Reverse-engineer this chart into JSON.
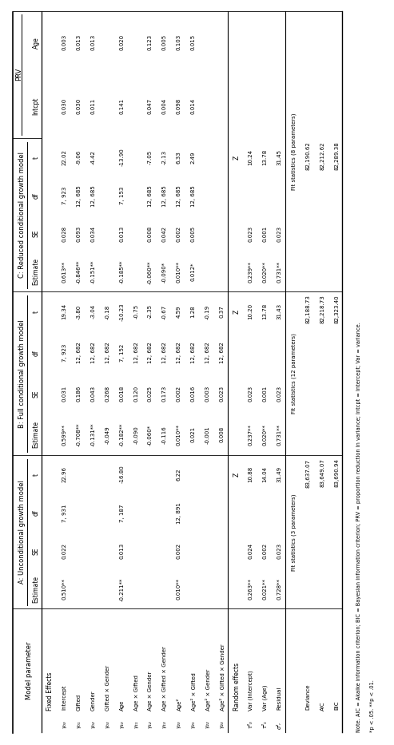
{
  "A_fixed": [
    [
      "0.510**",
      "0.022",
      "7, 931",
      "22.96"
    ],
    [
      "",
      "",
      "",
      ""
    ],
    [
      "",
      "",
      "",
      ""
    ],
    [
      "",
      "",
      "",
      ""
    ],
    [
      "-0.211**",
      "0.013",
      "7, 187",
      "-16.80"
    ],
    [
      "",
      "",
      "",
      ""
    ],
    [
      "",
      "",
      "",
      ""
    ],
    [
      "",
      "",
      "",
      ""
    ],
    [
      "0.010**",
      "0.002",
      "12, 891",
      "6.22"
    ],
    [
      "",
      "",
      "",
      ""
    ],
    [
      "",
      "",
      "",
      ""
    ],
    [
      "",
      "",
      "",
      ""
    ]
  ],
  "A_random": [
    [
      "0.263**",
      "0.024",
      "",
      "10.88"
    ],
    [
      "0.021**",
      "0.002",
      "",
      "14.04"
    ],
    [
      "0.728**",
      "0.023",
      "",
      "31.49"
    ]
  ],
  "A_fit": [
    "83,637.07",
    "83,649.07",
    "83,690.94"
  ],
  "A_fit_label": "Fit statistics (3 parameters)",
  "B_fixed": [
    [
      "0.599**",
      "0.031",
      "7, 923",
      "19.34"
    ],
    [
      "-0.708**",
      "0.186",
      "12, 682",
      "-3.80"
    ],
    [
      "-0.131**",
      "0.043",
      "12, 682",
      "-3.04"
    ],
    [
      "-0.049",
      "0.268",
      "12, 682",
      "-0.18"
    ],
    [
      "-0.182**",
      "0.018",
      "7, 152",
      "-10.23"
    ],
    [
      "-0.090",
      "0.120",
      "12, 682",
      "-0.75"
    ],
    [
      "-0.060*",
      "0.025",
      "12, 682",
      "-2.35"
    ],
    [
      "-0.116",
      "0.173",
      "12, 682",
      "-0.67"
    ],
    [
      "0.010**",
      "0.002",
      "12, 682",
      "4.59"
    ],
    [
      "0.021",
      "0.016",
      "12, 682",
      "1.28"
    ],
    [
      "-0.001",
      "0.003",
      "12, 682",
      "-0.19"
    ],
    [
      "0.008",
      "0.023",
      "12, 682",
      "0.37"
    ]
  ],
  "B_random": [
    [
      "0.237**",
      "0.023",
      "",
      "10.20"
    ],
    [
      "0.020**",
      "0.001",
      "",
      "13.78"
    ],
    [
      "0.731**",
      "0.023",
      "",
      "31.43"
    ]
  ],
  "B_fit": [
    "82,188.73",
    "82,218.73",
    "82,323.40"
  ],
  "B_fit_label": "Fit statistics (12 parameters)",
  "C_fixed": [
    [
      "0.613**",
      "0.028",
      "7, 923",
      "22.02",
      "0.030",
      "0.003"
    ],
    [
      "-0.846**",
      "0.093",
      "12, 685",
      "-9.06",
      "0.030",
      "0.013"
    ],
    [
      "-0.151**",
      "0.034",
      "12, 685",
      "-4.42",
      "0.011",
      "0.013"
    ],
    [
      "",
      "",
      "",
      "",
      "",
      ""
    ],
    [
      "-0.185**",
      "0.013",
      "7, 153",
      "-13.90",
      "0.141",
      "0.020"
    ],
    [
      "",
      "",
      "",
      "",
      "",
      ""
    ],
    [
      "-0.060**",
      "0.008",
      "12, 685",
      "-7.05",
      "0.047",
      "0.123"
    ],
    [
      "-0.090*",
      "0.042",
      "12, 685",
      "-2.13",
      "0.004",
      "0.005"
    ],
    [
      "0.010**",
      "0.002",
      "12, 685",
      "6.33",
      "0.098",
      "0.103"
    ],
    [
      "0.012*",
      "0.005",
      "12, 685",
      "2.49",
      "0.014",
      "0.015"
    ],
    [
      "",
      "",
      "",
      "",
      "",
      ""
    ],
    [
      "",
      "",
      "",
      "",
      "",
      ""
    ]
  ],
  "C_random": [
    [
      "0.239**",
      "0.023",
      "",
      "10.24"
    ],
    [
      "0.020**",
      "0.001",
      "",
      "13.78"
    ],
    [
      "0.731**",
      "0.023",
      "",
      "31.45"
    ]
  ],
  "C_fit": [
    "82,190.62",
    "82,212.62",
    "82,289.38"
  ],
  "C_fit_label": "Fit statistics (8 parameters)",
  "fe_labels": [
    "Intercept",
    "Gifted",
    "Gender",
    "Gifted × Gender",
    "Age",
    "Age × Gifted",
    "Age × Gender",
    "Age × Gifted × Gender",
    "Age²",
    "Age² × Gifted",
    "Age² × Gender",
    "Age² × Gifted × Gender"
  ],
  "greek_fe": [
    "γ₀₀",
    "γ₀₁",
    "γ₀₂",
    "γ₀₃",
    "γ₁₀",
    "γ₁₁",
    "γ₁₂",
    "γ₁₃",
    "γ₂₀",
    "γ₂₁",
    "γ₂₂",
    "γ₂₃"
  ],
  "re_labels": [
    "Var (Intercept)",
    "Var (Age)",
    "Residual"
  ],
  "greek_re": [
    "τ²₀",
    "τ²₁",
    "σ²ᵣ"
  ],
  "fit_labels": [
    "Deviance",
    "AIC",
    "BIC"
  ],
  "note": "Note. AIC = Akaike information criterion; BIC = Bayesian information criterion; PRV = proportion reduction in variance; Intcpt = Intercept; Var = variance.",
  "sig_note": "*p < .05. **p < .01.",
  "bg_color": "#ffffff",
  "text_color": "#000000"
}
